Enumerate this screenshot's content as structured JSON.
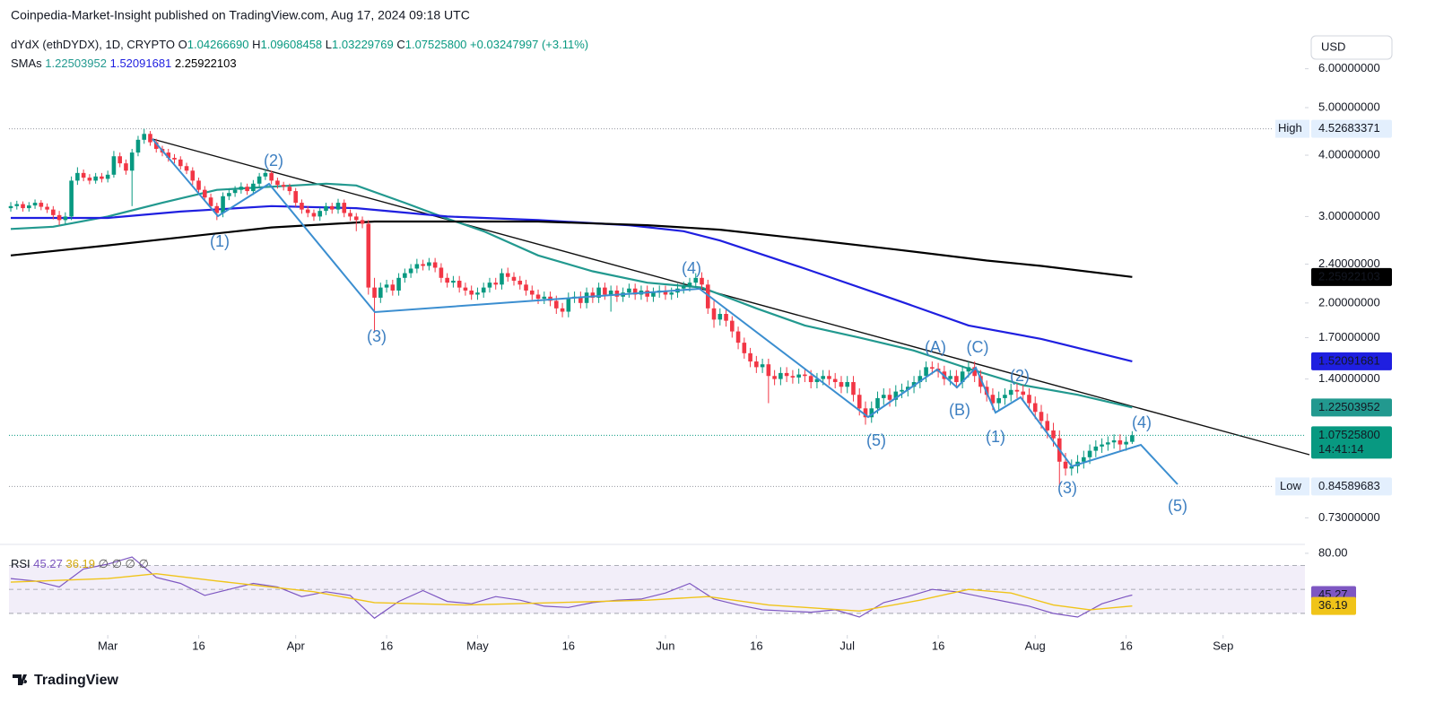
{
  "header": {
    "published": "Coinpedia-Market-Insight published on TradingView.com, Aug 17, 2024 09:18 UTC",
    "brand": "TradingView"
  },
  "chart_data": {
    "type": "candlestick",
    "legend": {
      "symbol": "dYdX (ethDYDX), 1D, CRYPTO",
      "o": "O",
      "h": "H",
      "l": "L",
      "c": "C",
      "open": "1.04266690",
      "high": "1.09608458",
      "low": "1.03229769",
      "close": "1.07525800",
      "change": "+0.03247997",
      "change_pct": "(+3.11%)",
      "countdown": "14:41:14",
      "sma_label": "SMAs",
      "currency": "USD",
      "high_tag": "High",
      "low_tag": "Low"
    },
    "log": true,
    "xlim": [
      -0.3,
      213.5
    ],
    "ylim": [
      0.65,
      7.0
    ],
    "yticks": [
      {
        "value": 6,
        "label": "6.00000000"
      },
      {
        "value": 5,
        "label": "5.00000000"
      },
      {
        "value": 4,
        "label": "4.00000000"
      },
      {
        "value": 3,
        "label": "3.00000000"
      },
      {
        "value": 2.4,
        "label": "2.40000000"
      },
      {
        "value": 2,
        "label": "2.00000000"
      },
      {
        "value": 1.7,
        "label": "1.70000000"
      },
      {
        "value": 1.4,
        "label": "1.40000000"
      },
      {
        "value": 0.73,
        "label": "0.73000000"
      }
    ],
    "xticks": [
      {
        "value": 16,
        "label": "Mar"
      },
      {
        "value": 31,
        "label": "16"
      },
      {
        "value": 47,
        "label": "Apr"
      },
      {
        "value": 62,
        "label": "16"
      },
      {
        "value": 77,
        "label": "May"
      },
      {
        "value": 92,
        "label": "16"
      },
      {
        "value": 108,
        "label": "Jun"
      },
      {
        "value": 123,
        "label": "16"
      },
      {
        "value": 138,
        "label": "Jul"
      },
      {
        "value": 153,
        "label": "16"
      },
      {
        "value": 169,
        "label": "Aug"
      },
      {
        "value": 184,
        "label": "16"
      },
      {
        "value": 200,
        "label": "Sep"
      }
    ],
    "up_color": "#089981",
    "down_color": "#f23645",
    "candles": {
      "open": [
        3.12,
        3.15,
        3.18,
        3.12,
        3.16,
        3.2,
        3.14,
        3.1,
        3.02,
        2.95,
        3.0,
        3.55,
        3.68,
        3.6,
        3.55,
        3.62,
        3.58,
        3.65,
        3.98,
        3.85,
        3.72,
        4.05,
        4.3,
        4.42,
        4.25,
        4.12,
        4.05,
        3.95,
        3.92,
        3.8,
        3.72,
        3.55,
        3.4,
        3.28,
        3.15,
        3.05,
        3.3,
        3.35,
        3.4,
        3.45,
        3.38,
        3.5,
        3.62,
        3.68,
        3.55,
        3.48,
        3.45,
        3.38,
        3.2,
        3.1,
        3.05,
        3.0,
        3.08,
        3.15,
        3.1,
        3.2,
        3.05,
        3.0,
        2.95,
        2.9,
        2.15,
        2.05,
        2.15,
        2.18,
        2.12,
        2.25,
        2.3,
        2.35,
        2.4,
        2.38,
        2.42,
        2.36,
        2.25,
        2.2,
        2.22,
        2.15,
        2.12,
        2.08,
        2.1,
        2.15,
        2.2,
        2.18,
        2.3,
        2.26,
        2.22,
        2.18,
        2.12,
        2.08,
        2.04,
        2.06,
        2.02,
        1.95,
        1.92,
        2.05,
        2.06,
        2.0,
        2.1,
        2.05,
        2.15,
        2.08,
        2.12,
        2.06,
        2.1,
        2.14,
        2.08,
        2.12,
        2.06,
        2.1,
        2.12,
        2.08,
        2.1,
        2.14,
        2.16,
        2.2,
        2.25,
        2.18,
        1.95,
        1.85,
        1.9,
        1.84,
        1.75,
        1.66,
        1.58,
        1.52,
        1.48,
        1.5,
        1.42,
        1.4,
        1.44,
        1.42,
        1.41,
        1.43,
        1.42,
        1.38,
        1.4,
        1.42,
        1.4,
        1.38,
        1.35,
        1.38,
        1.3,
        1.22,
        1.17,
        1.22,
        1.28,
        1.3,
        1.27,
        1.32,
        1.33,
        1.35,
        1.38,
        1.42,
        1.48,
        1.47,
        1.45,
        1.4,
        1.42,
        1.38,
        1.45,
        1.48,
        1.42,
        1.35,
        1.3,
        1.25,
        1.28,
        1.3,
        1.33,
        1.32,
        1.3,
        1.25,
        1.2,
        1.15,
        1.1,
        1.06,
        0.95,
        0.92,
        0.93,
        0.95,
        0.97,
        1.0,
        1.02,
        1.03,
        1.04,
        1.05,
        1.03,
        1.0426669
      ],
      "high": [
        3.21,
        3.23,
        3.22,
        3.21,
        3.25,
        3.24,
        3.19,
        3.15,
        3.08,
        3.06,
        3.62,
        3.78,
        3.74,
        3.66,
        3.68,
        3.68,
        3.72,
        4.08,
        4.05,
        3.92,
        4.12,
        4.38,
        4.52683371,
        4.48,
        4.32,
        4.18,
        4.12,
        4.02,
        3.98,
        3.86,
        3.78,
        3.6,
        3.46,
        3.34,
        3.2,
        3.36,
        3.41,
        3.46,
        3.52,
        3.5,
        3.56,
        3.68,
        3.75,
        3.72,
        3.6,
        3.53,
        3.5,
        3.43,
        3.25,
        3.15,
        3.1,
        3.13,
        3.2,
        3.2,
        3.26,
        3.25,
        3.1,
        3.05,
        3.0,
        2.95,
        2.25,
        2.2,
        2.23,
        2.23,
        2.3,
        2.35,
        2.4,
        2.46,
        2.45,
        2.47,
        2.47,
        2.41,
        2.3,
        2.27,
        2.27,
        2.2,
        2.17,
        2.15,
        2.2,
        2.25,
        2.25,
        2.35,
        2.36,
        2.31,
        2.27,
        2.23,
        2.17,
        2.13,
        2.11,
        2.11,
        2.07,
        2.0,
        2.1,
        2.11,
        2.11,
        2.15,
        2.15,
        2.2,
        2.2,
        2.17,
        2.17,
        2.15,
        2.19,
        2.19,
        2.17,
        2.17,
        2.15,
        2.17,
        2.17,
        2.15,
        2.19,
        2.21,
        2.25,
        2.3,
        2.31,
        2.23,
        2.02,
        1.95,
        1.95,
        1.88,
        1.79,
        1.7,
        1.62,
        1.56,
        1.54,
        1.54,
        1.46,
        1.48,
        1.48,
        1.46,
        1.47,
        1.47,
        1.46,
        1.44,
        1.46,
        1.46,
        1.44,
        1.42,
        1.42,
        1.42,
        1.34,
        1.26,
        1.26,
        1.32,
        1.34,
        1.34,
        1.36,
        1.37,
        1.39,
        1.42,
        1.46,
        1.52,
        1.52,
        1.51,
        1.49,
        1.46,
        1.46,
        1.49,
        1.52,
        1.52,
        1.46,
        1.39,
        1.34,
        1.32,
        1.34,
        1.37,
        1.37,
        1.36,
        1.34,
        1.29,
        1.24,
        1.19,
        1.14,
        1.1,
        0.99,
        0.96,
        0.98,
        1.0,
        1.03,
        1.05,
        1.06,
        1.07,
        1.08,
        1.08,
        1.07,
        1.09608458
      ],
      "low": [
        3.07,
        3.1,
        3.07,
        3.07,
        3.11,
        3.09,
        3.05,
        2.96,
        2.88,
        2.89,
        2.95,
        3.48,
        3.54,
        3.49,
        3.5,
        3.52,
        3.52,
        3.6,
        3.78,
        3.65,
        3.15,
        3.98,
        4.22,
        4.18,
        4.05,
        3.98,
        3.88,
        3.85,
        3.74,
        3.66,
        3.48,
        3.34,
        3.22,
        3.09,
        2.95,
        2.99,
        3.24,
        3.29,
        3.34,
        3.32,
        3.32,
        3.44,
        3.56,
        3.49,
        3.42,
        3.39,
        3.32,
        3.14,
        3.04,
        2.99,
        2.94,
        2.94,
        3.02,
        3.04,
        3.04,
        2.99,
        2.94,
        2.8,
        2.84,
        2.08,
        1.75,
        2.0,
        2.1,
        2.07,
        2.07,
        2.2,
        2.25,
        2.3,
        2.33,
        2.33,
        2.31,
        2.2,
        2.15,
        2.15,
        2.1,
        2.07,
        2.03,
        2.03,
        2.05,
        2.1,
        2.13,
        2.13,
        2.21,
        2.17,
        2.13,
        2.07,
        2.03,
        1.99,
        1.99,
        1.97,
        1.9,
        1.87,
        1.87,
        2.0,
        1.95,
        1.95,
        2.0,
        2.0,
        2.03,
        1.92,
        2.01,
        2.01,
        2.05,
        2.03,
        2.03,
        2.01,
        2.01,
        2.05,
        2.03,
        2.03,
        2.05,
        2.09,
        2.11,
        2.15,
        2.13,
        1.9,
        1.78,
        1.8,
        1.79,
        1.7,
        1.61,
        1.54,
        1.48,
        1.44,
        1.44,
        1.25,
        1.36,
        1.36,
        1.38,
        1.37,
        1.37,
        1.38,
        1.34,
        1.34,
        1.36,
        1.36,
        1.34,
        1.31,
        1.31,
        1.26,
        1.18,
        1.13,
        1.14,
        1.19,
        1.24,
        1.23,
        1.23,
        1.28,
        1.29,
        1.31,
        1.34,
        1.38,
        1.43,
        1.41,
        1.36,
        1.36,
        1.34,
        1.34,
        1.41,
        1.38,
        1.31,
        1.26,
        1.21,
        1.21,
        1.24,
        1.26,
        1.28,
        1.26,
        1.21,
        1.16,
        1.11,
        1.06,
        1.02,
        0.84589683,
        0.89,
        0.89,
        0.9,
        0.92,
        0.94,
        0.97,
        0.99,
        1.0,
        1.01,
        1.0,
        1.0,
        1.03229769
      ],
      "close": [
        3.15,
        3.18,
        3.12,
        3.16,
        3.2,
        3.14,
        3.1,
        3.02,
        2.95,
        3.0,
        3.55,
        3.68,
        3.6,
        3.55,
        3.62,
        3.58,
        3.65,
        3.98,
        3.85,
        3.72,
        4.05,
        4.3,
        4.42,
        4.25,
        4.12,
        4.05,
        3.95,
        3.92,
        3.8,
        3.72,
        3.55,
        3.4,
        3.28,
        3.15,
        3.05,
        3.3,
        3.35,
        3.4,
        3.45,
        3.38,
        3.5,
        3.62,
        3.68,
        3.55,
        3.48,
        3.45,
        3.38,
        3.2,
        3.1,
        3.05,
        3.0,
        3.08,
        3.15,
        3.1,
        3.2,
        3.05,
        3.0,
        2.95,
        2.9,
        2.15,
        2.05,
        2.15,
        2.18,
        2.12,
        2.25,
        2.3,
        2.35,
        2.4,
        2.38,
        2.42,
        2.36,
        2.25,
        2.2,
        2.22,
        2.15,
        2.12,
        2.08,
        2.1,
        2.15,
        2.2,
        2.18,
        2.3,
        2.26,
        2.22,
        2.18,
        2.12,
        2.08,
        2.04,
        2.06,
        2.02,
        1.95,
        1.92,
        2.05,
        2.06,
        2.0,
        2.1,
        2.05,
        2.15,
        2.08,
        2.12,
        2.06,
        2.1,
        2.14,
        2.08,
        2.12,
        2.06,
        2.1,
        2.12,
        2.08,
        2.1,
        2.14,
        2.16,
        2.2,
        2.25,
        2.18,
        1.95,
        1.85,
        1.9,
        1.84,
        1.75,
        1.66,
        1.58,
        1.52,
        1.48,
        1.5,
        1.42,
        1.4,
        1.44,
        1.42,
        1.41,
        1.43,
        1.42,
        1.38,
        1.4,
        1.42,
        1.4,
        1.38,
        1.35,
        1.38,
        1.3,
        1.22,
        1.17,
        1.22,
        1.28,
        1.3,
        1.27,
        1.32,
        1.33,
        1.35,
        1.38,
        1.42,
        1.48,
        1.47,
        1.45,
        1.4,
        1.42,
        1.38,
        1.45,
        1.48,
        1.42,
        1.35,
        1.3,
        1.25,
        1.28,
        1.3,
        1.33,
        1.32,
        1.3,
        1.25,
        1.2,
        1.15,
        1.1,
        1.06,
        0.95,
        0.92,
        0.93,
        0.95,
        0.97,
        1.0,
        1.02,
        1.03,
        1.04,
        1.05,
        1.03,
        1.0426669,
        1.075258
      ]
    },
    "series": [
      {
        "color": "#22998f",
        "x": [
          0,
          7,
          16,
          25,
          34,
          43,
          52,
          57,
          65,
          72,
          78,
          87,
          96,
          105,
          114,
          123,
          131,
          140,
          149,
          158,
          167,
          176,
          185
        ],
        "values": [
          2.83,
          2.86,
          3.0,
          3.2,
          3.4,
          3.45,
          3.5,
          3.47,
          3.2,
          2.97,
          2.8,
          2.5,
          2.32,
          2.2,
          2.15,
          1.95,
          1.8,
          1.7,
          1.6,
          1.47,
          1.36,
          1.3,
          1.22503952
        ]
      },
      {
        "color": "#1f1fe0",
        "x": [
          0,
          16,
          28,
          43,
          57,
          72,
          87,
          102,
          111,
          117,
          131,
          146,
          158,
          170,
          185
        ],
        "values": [
          2.98,
          2.98,
          3.07,
          3.15,
          3.12,
          3.0,
          2.95,
          2.88,
          2.8,
          2.68,
          2.35,
          2.03,
          1.8,
          1.69,
          1.52091681
        ]
      },
      {
        "color": "#000000",
        "x": [
          0,
          16,
          28,
          43,
          60,
          87,
          105,
          117,
          131,
          146,
          161,
          170,
          185
        ],
        "values": [
          2.5,
          2.62,
          2.72,
          2.85,
          2.93,
          2.93,
          2.88,
          2.82,
          2.7,
          2.57,
          2.44,
          2.38,
          2.25922103
        ]
      }
    ],
    "waves": [
      "(1)",
      "(2)",
      "(3)",
      "(4)",
      "(5)",
      "(A)",
      "(B)",
      "(C)",
      "(1)",
      "(2)",
      "(3)",
      "(4)",
      "(5)"
    ],
    "rsi": {
      "label": "RSI",
      "extra": [
        "∅",
        "∅",
        "∅",
        "∅"
      ],
      "ylim": [
        14.3,
        83.7
      ],
      "yticks": [
        {
          "value": 80,
          "label": "80.00"
        }
      ],
      "levels": [
        70,
        50,
        30
      ],
      "series": [
        {
          "color": "#7e57c2",
          "x": [
            0,
            4,
            8,
            12,
            16,
            20,
            24,
            28,
            32,
            36,
            40,
            44,
            48,
            52,
            56,
            60,
            64,
            68,
            72,
            76,
            80,
            84,
            88,
            92,
            96,
            100,
            104,
            108,
            112,
            116,
            120,
            124,
            128,
            132,
            136,
            140,
            144,
            148,
            152,
            156,
            160,
            164,
            168,
            172,
            176,
            180,
            184,
            185
          ],
          "values": [
            59,
            57,
            52,
            67,
            71,
            77,
            60,
            55,
            45,
            50,
            55,
            52,
            44,
            48,
            45,
            26,
            40,
            49,
            40,
            38,
            44,
            41,
            36,
            35,
            39,
            41,
            42,
            47,
            55,
            42,
            37,
            33,
            32,
            31,
            33,
            27,
            39,
            44,
            50,
            48,
            44,
            40,
            36,
            30,
            27,
            38,
            44,
            45.27
          ]
        },
        {
          "color": "#f0c419",
          "x": [
            0,
            16,
            24,
            34,
            50,
            60,
            75,
            90,
            105,
            115,
            125,
            140,
            150,
            158,
            165,
            172,
            178,
            185
          ],
          "values": [
            56,
            59,
            63,
            57,
            48,
            39,
            37,
            39,
            41,
            44,
            37,
            32,
            41,
            50,
            47,
            37,
            33,
            36.19
          ]
        }
      ]
    }
  }
}
